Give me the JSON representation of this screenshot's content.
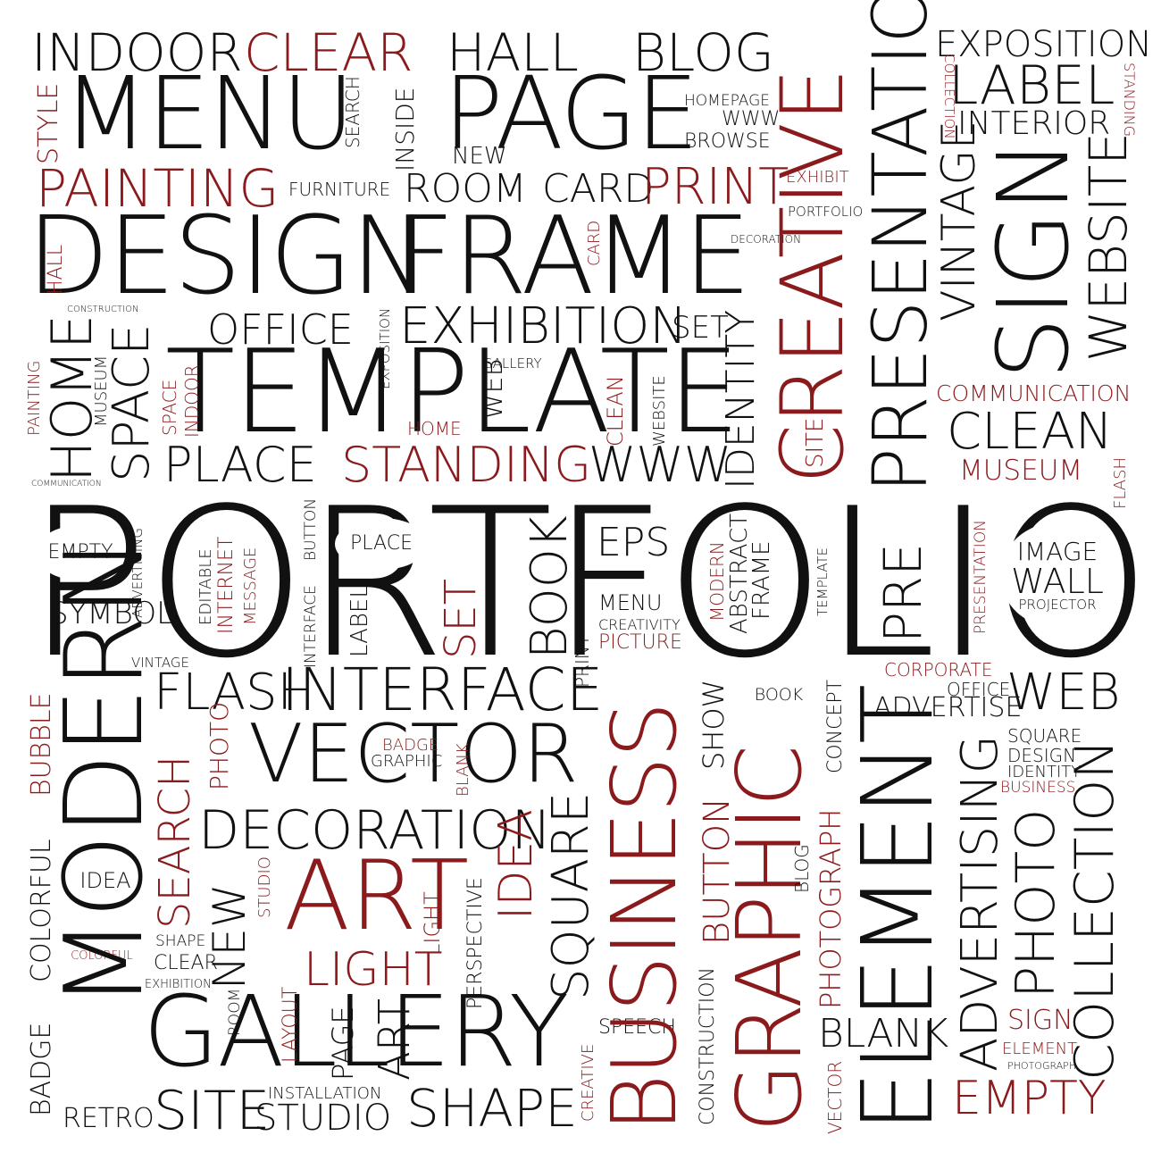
{
  "colors": {
    "black": "#111111",
    "red": "#8a1a1c",
    "background": "#ffffff"
  },
  "words": {
    "portfolio": "PORTFOLIO",
    "design": "DESIGN",
    "frame": "FRAME",
    "template": "TEMPLATE",
    "menu": "MENU",
    "page": "PAGE",
    "indoor": "INDOOR",
    "clear": "CLEAR",
    "hall": "HALL",
    "blog": "BLOG",
    "exposition": "EXPOSITION",
    "label": "LABEL",
    "interior": "INTERIOR",
    "painting": "PAINTING",
    "furniture": "FURNITURE",
    "room": "ROOM",
    "card": "CARD",
    "print": "PRINT",
    "exhibit": "EXHIBIT",
    "portfolio_small": "PORTFOLIO",
    "decoration_small": "DECORATION",
    "homepage": "HOMEPAGE",
    "www": "WWW",
    "browse": "BROWSE",
    "new": "NEW",
    "office": "OFFICE",
    "exhibition": "EXHIBITION",
    "set": "SET",
    "place": "PLACE",
    "standing": "STANDING",
    "www_big": "WWW",
    "gallery_small": "GALLERY",
    "home_small": "HOME",
    "communication": "COMMUNICATION",
    "clean": "CLEAN",
    "museum": "MUSEUM",
    "construction": "CONSTRUCTION",
    "communication_small": "COMMUNICATION",
    "empty": "EMPTY",
    "symbol": "SYMBOL",
    "place_circle": "PLACE",
    "eps": "EPS",
    "menu_small": "MENU",
    "creativity": "CREATIVITY",
    "picture": "PICTURE",
    "image": "IMAGE",
    "wall": "WALL",
    "projector": "PROJECTOR",
    "vintage_small": "VINTAGE",
    "flash": "FLASH",
    "interface": "INTERFACE",
    "vector": "VECTOR",
    "badge": "BADGE",
    "graphic_small": "GRAPHIC",
    "book_circle": "BOOK",
    "corporate": "CORPORATE",
    "office_small": "OFFICE",
    "advertise": "ADVERTISE",
    "web": "WEB",
    "square_small": "SQUARE",
    "design_small": "DESIGN",
    "identity_small": "IDENTITY",
    "business_small": "BUSINESS",
    "decoration": "DECORATION",
    "idea_circle": "IDEA",
    "art": "ART",
    "light": "LIGHT",
    "shape_small": "SHAPE",
    "clear_small": "CLEAR",
    "colorful_circle": "COLORFUL",
    "exhibition_small": "EXHIBITION",
    "gallery": "GALLERY",
    "speech": "SPEECH",
    "blank": "BLANK",
    "sign_small": "SIGN",
    "element_small": "ELEMENT",
    "photograph_small": "PHOTOGRAPH",
    "empty_red": "EMPTY",
    "installation": "INSTALLATION",
    "retro": "RETRO",
    "site": "SITE",
    "studio": "STUDIO",
    "shape": "SHAPE",
    "style": "STYLE",
    "search": "SEARCH",
    "inside": "INSIDE",
    "creative": "CREATIVE",
    "presentation": "PRESENTATION",
    "vintage": "VINTAGE",
    "sign": "SIGN",
    "website": "WEBSITE",
    "collection": "COLLECTION",
    "standing_v": "STANDING",
    "hall_v": "HALL",
    "card_v": "CARD",
    "home": "HOME",
    "space": "SPACE",
    "museum_v": "MUSEUM",
    "painting_v": "PAINTING",
    "space_v": "SPACE",
    "indoor_v": "INDOOR",
    "exposition_v": "EXPOSITION",
    "web_v": "WEB",
    "clean_v": "CLEAN",
    "website_v": "WEBSITE",
    "identity": "IDENTITY",
    "site_v": "SITE",
    "flash_v": "FLASH",
    "advertising_v": "ADVERTISING",
    "editable": "EDITABLE",
    "internet": "INTERNET",
    "message": "MESSAGE",
    "interface_v": "INTERFACE",
    "button_v": "BUTTON",
    "label_v": "LABEL",
    "set_v": "SET",
    "book": "BOOK",
    "modern_small": "MODERN",
    "abstract": "ABSTRACT",
    "frame_v": "FRAME",
    "template_v": "TEMPLATE",
    "pre": "PRE",
    "presentation_v": "PRESENTATION",
    "modern": "MODERN",
    "bubble": "BUBBLE",
    "colorful": "COLORFUL",
    "badge_v": "BADGE",
    "search_v": "SEARCH",
    "photo_v": "PHOTO",
    "blank_v": "BLANK",
    "print_v": "PRINT",
    "business": "BUSINESS",
    "show": "SHOW",
    "button": "BUTTON",
    "graphic": "GRAPHIC",
    "concept": "CONCEPT",
    "photograph": "PHOTOGRAPH",
    "element": "ELEMENT",
    "advertising": "ADVERTISING",
    "photo": "PHOTO",
    "collection_big": "COLLECTION",
    "new_v": "NEW",
    "studio_v": "STUDIO",
    "room_v": "ROOM",
    "layout": "LAYOUT",
    "page_v": "PAGE",
    "art_v": "ART",
    "light_v": "LIGHT",
    "perspective": "PERSPECTIVE",
    "idea": "IDEA",
    "square": "SQUARE",
    "creative_small": "CREATIVE",
    "construction_v": "CONSTRUCTION",
    "blog_v": "BLOG",
    "vector_v": "VECTOR"
  }
}
